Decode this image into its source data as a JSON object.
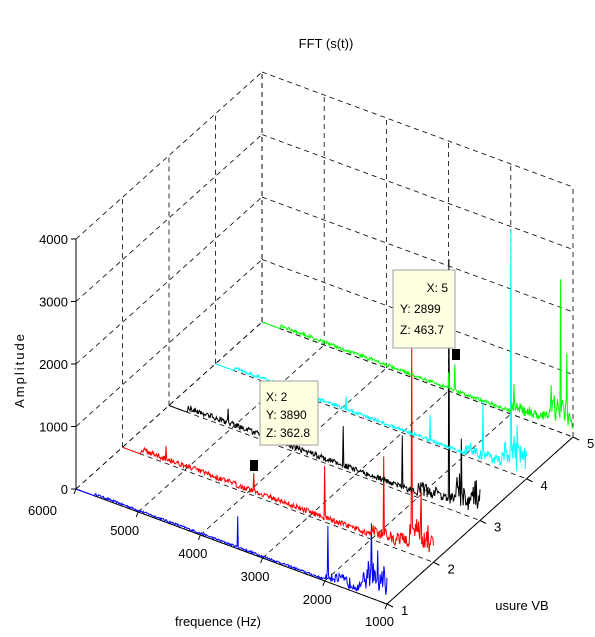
{
  "chart_data": {
    "type": "line",
    "title": "FFT (s(t))",
    "xlabel": "frequence (Hz)",
    "ylabel": "usure VB",
    "zlabel": "Amplitude",
    "xlim": [
      1000,
      6000
    ],
    "ylim": [
      1,
      5
    ],
    "zlim": [
      0,
      4000
    ],
    "x_ticks": [
      "6000",
      "5000",
      "4000",
      "3000",
      "2000",
      "1000"
    ],
    "y_ticks": [
      "1",
      "2",
      "3",
      "4",
      "5"
    ],
    "z_ticks": [
      "0",
      "1000",
      "2000",
      "3000",
      "4000"
    ],
    "grid": true,
    "series": [
      {
        "usure": 1,
        "color": "#0000ff",
        "baseline": 30,
        "spikes": [
          [
            3400,
            520
          ],
          [
            1950,
            900
          ],
          [
            1250,
            1200
          ],
          [
            1150,
            800
          ]
        ]
      },
      {
        "usure": 2,
        "color": "#ff0000",
        "baseline": 80,
        "spikes": [
          [
            5300,
            280
          ],
          [
            3890,
            363
          ],
          [
            2750,
            900
          ],
          [
            1800,
            1400
          ],
          [
            1350,
            3400
          ],
          [
            1200,
            1100
          ]
        ]
      },
      {
        "usure": 3,
        "color": "#000000",
        "baseline": 80,
        "spikes": [
          [
            5050,
            300
          ],
          [
            3200,
            700
          ],
          [
            2250,
            900
          ],
          [
            1500,
            4000
          ],
          [
            1300,
            1200
          ]
        ]
      },
      {
        "usure": 4,
        "color": "#00ffff",
        "baseline": 50,
        "spikes": [
          [
            3900,
            250
          ],
          [
            2550,
            450
          ],
          [
            1700,
            1000
          ],
          [
            1250,
            3900
          ],
          [
            1150,
            800
          ]
        ]
      },
      {
        "usure": 5,
        "color": "#00ff00",
        "baseline": 50,
        "spikes": [
          [
            5850,
            250
          ],
          [
            3000,
            300
          ],
          [
            2899,
            464
          ],
          [
            1950,
            500
          ],
          [
            1350,
            700
          ],
          [
            1200,
            2450
          ],
          [
            1100,
            1300
          ]
        ]
      }
    ],
    "datatips": [
      {
        "lines": [
          "X: 2",
          "Y: 3890",
          "Z: 362.8"
        ]
      },
      {
        "lines": [
          "X: 5",
          "Y: 2899",
          "Z: 463.7"
        ]
      }
    ]
  }
}
